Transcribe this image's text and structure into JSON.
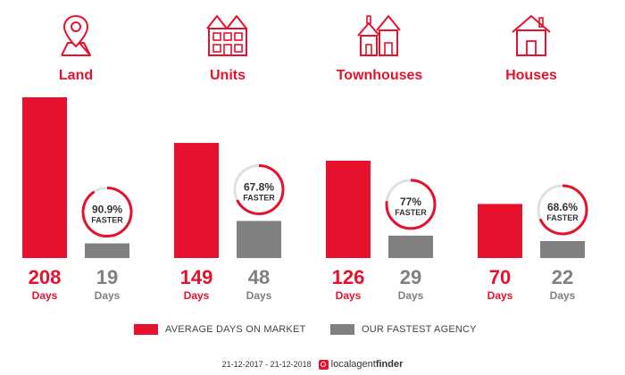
{
  "chart_data": {
    "type": "bar",
    "categories": [
      "Land",
      "Units",
      "Townhouses",
      "Houses"
    ],
    "series": [
      {
        "name": "AVERAGE DAYS ON MARKET",
        "values": [
          208,
          149,
          126,
          70
        ],
        "color": "#e8112d"
      },
      {
        "name": "OUR FASTEST AGENCY",
        "values": [
          19,
          48,
          29,
          22
        ],
        "color": "#808080"
      }
    ],
    "value_unit": "Days",
    "faster": [
      {
        "label": "90.9%",
        "fraction": 0.909
      },
      {
        "label": "67.8%",
        "fraction": 0.678
      },
      {
        "label": "77%",
        "fraction": 0.77
      },
      {
        "label": "68.6%",
        "fraction": 0.686
      }
    ],
    "faster_text": "FASTER",
    "ylim": [
      0,
      208
    ],
    "legend_position": "bottom",
    "grid": false
  },
  "icons": [
    "map-pin-icon",
    "units-building-icon",
    "townhouses-icon",
    "house-icon"
  ],
  "footer": {
    "date_range": "21-12-2017 - 21-12-2018",
    "brand_part1": "localagent",
    "brand_part2": "finder"
  }
}
